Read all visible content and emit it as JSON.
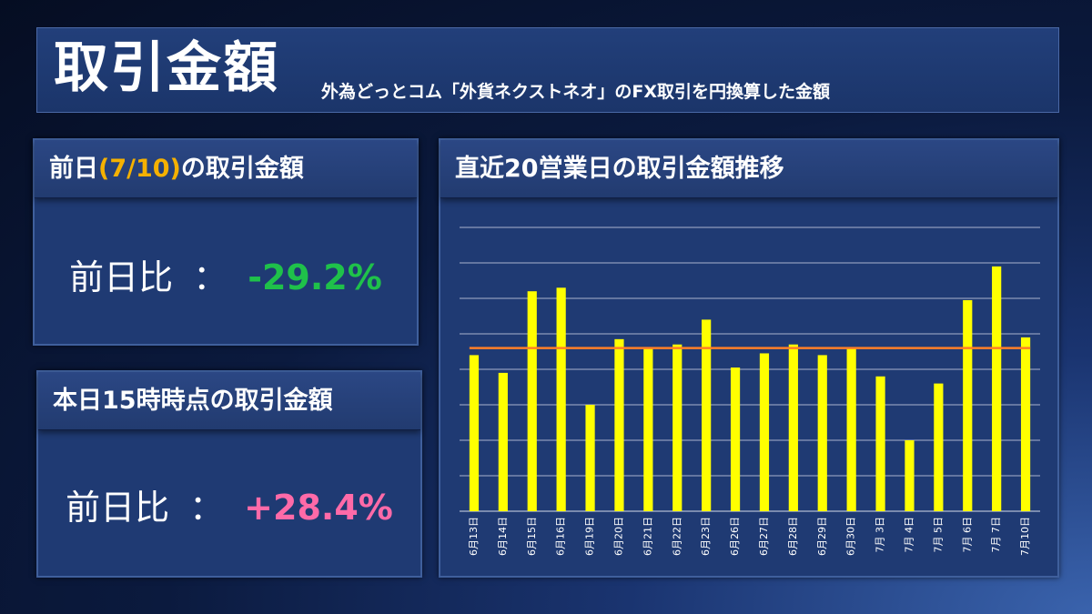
{
  "header": {
    "title": "取引金額",
    "subtitle": "外為どっとコム「外貨ネクストネオ」のFX取引を円換算した金額"
  },
  "prev_day_panel": {
    "title_pre": "前日",
    "title_date": "(7/10)",
    "title_post": "の取引金額",
    "label": "前日比",
    "sep": "：",
    "value": "-29.2%"
  },
  "today_panel": {
    "title": "本日15時時点の取引金額",
    "label": "前日比",
    "sep": "：",
    "value": "+28.4%"
  },
  "chart_panel": {
    "title": "直近20営業日の取引金額推移"
  },
  "colors": {
    "bar": "#ffff00",
    "average_line": "#ff7f27",
    "positive": "#ff6aa8",
    "negative": "#1fc14a",
    "accent": "#f5b100"
  },
  "chart_data": {
    "type": "bar",
    "title": "直近20営業日の取引金額推移",
    "xlabel": "",
    "ylabel": "",
    "y_axis_labels": false,
    "ylim": [
      0,
      8
    ],
    "grid": true,
    "categories": [
      "6月13日",
      "6月14日",
      "6月15日",
      "6月16日",
      "6月19日",
      "6月20日",
      "6月21日",
      "6月22日",
      "6月23日",
      "6月26日",
      "6月27日",
      "6月28日",
      "6月29日",
      "6月30日",
      "7月 3日",
      "7月 4日",
      "7月 5日",
      "7月 6日",
      "7月 7日",
      "7月10日"
    ],
    "values": [
      4.4,
      3.9,
      6.2,
      6.3,
      3.0,
      4.85,
      4.6,
      4.7,
      5.4,
      4.05,
      4.45,
      4.7,
      4.4,
      4.6,
      3.8,
      2.0,
      3.6,
      5.95,
      6.9,
      4.9
    ],
    "average": 4.6
  }
}
